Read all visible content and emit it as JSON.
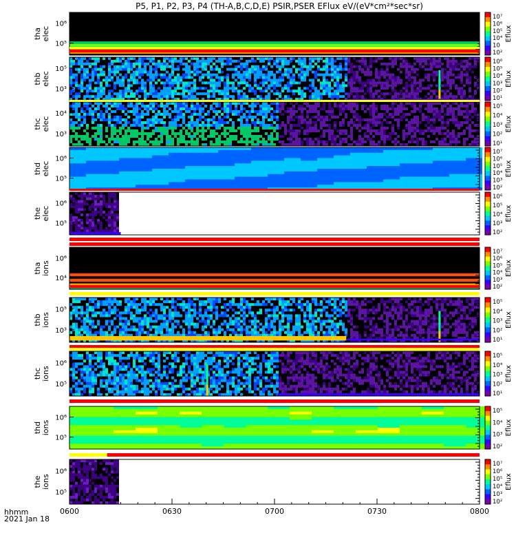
{
  "chart_data": {
    "type": "heatmap",
    "title": "P5, P1, P2, P3, P4 (TH-A,B,C,D,E) PSIR,PSER EFlux eV/(eV*cm²*sec*sr)",
    "x_ticks": [
      "0600",
      "0630",
      "0700",
      "0730",
      "0800"
    ],
    "x_unit_label": "hhmm",
    "date_label": "2021 Jan 18",
    "colorbar_label": "Eflux",
    "panels": [
      {
        "label": [
          "tha",
          "elec"
        ],
        "yticks": [
          "10⁶",
          "10⁵"
        ],
        "cticks": [
          "10⁷",
          "10⁶",
          "10⁵",
          "10⁴",
          "10⁳",
          "10²"
        ],
        "data_end": "0800",
        "end_time": "0800",
        "pattern": "background"
      },
      {
        "label": [
          "thb",
          "elec"
        ],
        "yticks": [
          "10⁵",
          "10³"
        ],
        "cticks": [
          "10⁶",
          "10⁵",
          "10⁴",
          "10³",
          "10²",
          "10¹"
        ],
        "data_end": "0800",
        "change_time": "0721",
        "spike_time": "0748",
        "pattern": "noisy"
      },
      {
        "label": [
          "thc",
          "elec"
        ],
        "yticks": [
          "10⁴",
          "10³"
        ],
        "cticks": [
          "10⁵",
          "10⁴",
          "10³",
          "10²",
          "10¹"
        ],
        "data_end": "0800",
        "change_time": "0701",
        "pattern": "noisy"
      },
      {
        "label": [
          "thd",
          "elec"
        ],
        "yticks": [
          "10⁶",
          "10⁵"
        ],
        "cticks": [
          "10⁷",
          "10⁶",
          "10⁵",
          "10⁴",
          "10³",
          "10²"
        ],
        "data_end": "0800",
        "pattern": "smooth"
      },
      {
        "label": [
          "the",
          "elec"
        ],
        "yticks": [
          "10⁶",
          "10⁵"
        ],
        "cticks": [
          "10⁶",
          "10⁵",
          "10⁴",
          "10³",
          "10²"
        ],
        "data_end": "0615",
        "pattern": "sparse"
      },
      {
        "label": [
          "tha",
          "ions"
        ],
        "yticks": [
          "10⁶",
          "10⁴"
        ],
        "cticks": [
          "10⁷",
          "10⁶",
          "10⁵",
          "10⁴",
          "10³",
          "10²"
        ],
        "data_end": "0800",
        "pattern": "background"
      },
      {
        "label": [
          "thb",
          "ions"
        ],
        "yticks": [
          "10⁵",
          "10³"
        ],
        "cticks": [
          "10⁵",
          "10⁴",
          "10³",
          "10²",
          "10¹"
        ],
        "data_end": "0800",
        "change_time": "0721",
        "spike_time": "0748",
        "pattern": "noisy"
      },
      {
        "label": [
          "thc",
          "ions"
        ],
        "yticks": [
          "10⁶",
          "10⁵"
        ],
        "cticks": [
          "10⁵",
          "10⁴",
          "10³",
          "10²",
          "10¹"
        ],
        "data_end": "0800",
        "change_time": "0701",
        "spike_time": "0640",
        "pattern": "noisy"
      },
      {
        "label": [
          "thd",
          "ions"
        ],
        "yticks": [
          "10⁶",
          "10⁵"
        ],
        "cticks": [
          "10⁵",
          "10⁴",
          "10³",
          "10²"
        ],
        "data_end": "0800",
        "pattern": "green"
      },
      {
        "label": [
          "the",
          "ions"
        ],
        "yticks": [
          "10⁶",
          "10⁵"
        ],
        "cticks": [
          "10⁷",
          "10⁶",
          "10⁵",
          "10⁴",
          "10³",
          "10²"
        ],
        "data_end": "0615",
        "pattern": "sparse"
      }
    ]
  },
  "colors": {
    "rainbow": [
      "#7a00a8",
      "#3a00ff",
      "#0064ff",
      "#00c8ff",
      "#00ff96",
      "#78ff00",
      "#ffff00",
      "#ff8c00",
      "#ff0000"
    ],
    "flag_red": "#ff0000",
    "flag_yellow": "#ffff00",
    "background": "#000000"
  }
}
